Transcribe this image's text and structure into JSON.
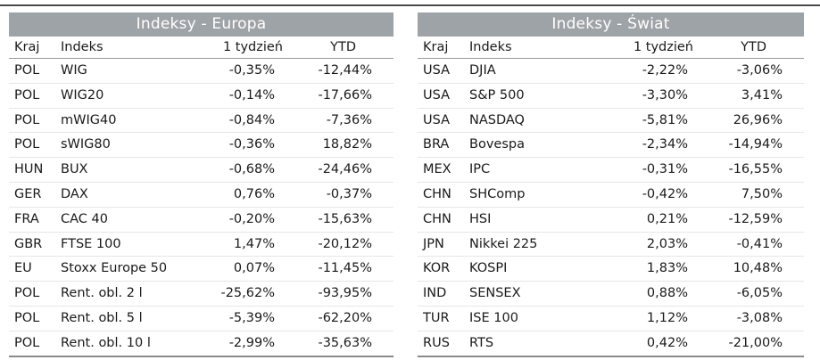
{
  "europe": {
    "title": "Indeksy - Europa",
    "headers": {
      "country": "Kraj",
      "index": "Indeks",
      "week": "1 tydzień",
      "ytd": "YTD"
    },
    "rows": [
      {
        "country": "POL",
        "index": "WIG",
        "week": "-0,35%",
        "ytd": "-12,44%"
      },
      {
        "country": "POL",
        "index": "WIG20",
        "week": "-0,14%",
        "ytd": "-17,66%"
      },
      {
        "country": "POL",
        "index": "mWIG40",
        "week": "-0,84%",
        "ytd": "-7,36%"
      },
      {
        "country": "POL",
        "index": "sWIG80",
        "week": "-0,36%",
        "ytd": "18,82%"
      },
      {
        "country": "HUN",
        "index": "BUX",
        "week": "-0,68%",
        "ytd": "-24,46%"
      },
      {
        "country": "GER",
        "index": "DAX",
        "week": "0,76%",
        "ytd": "-0,37%"
      },
      {
        "country": "FRA",
        "index": "CAC 40",
        "week": "-0,20%",
        "ytd": "-15,63%"
      },
      {
        "country": "GBR",
        "index": "FTSE 100",
        "week": "1,47%",
        "ytd": "-20,12%"
      },
      {
        "country": "EU",
        "index": "Stoxx Europe 50",
        "week": "0,07%",
        "ytd": "-11,45%"
      },
      {
        "country": "POL",
        "index": "Rent. obl. 2 l",
        "week": "-25,62%",
        "ytd": "-93,95%"
      },
      {
        "country": "POL",
        "index": "Rent. obl. 5 l",
        "week": "-5,39%",
        "ytd": "-62,20%"
      },
      {
        "country": "POL",
        "index": "Rent. obl. 10 l",
        "week": "-2,99%",
        "ytd": "-35,63%"
      }
    ]
  },
  "world": {
    "title": "Indeksy - Świat",
    "headers": {
      "country": "Kraj",
      "index": "Indeks",
      "week": "1 tydzień",
      "ytd": "YTD"
    },
    "rows": [
      {
        "country": "USA",
        "index": "DJIA",
        "week": "-2,22%",
        "ytd": "-3,06%"
      },
      {
        "country": "USA",
        "index": "S&P 500",
        "week": "-3,30%",
        "ytd": "3,41%"
      },
      {
        "country": "USA",
        "index": "NASDAQ",
        "week": "-5,81%",
        "ytd": "26,96%"
      },
      {
        "country": "BRA",
        "index": "Bovespa",
        "week": "-2,34%",
        "ytd": "-14,94%"
      },
      {
        "country": "MEX",
        "index": "IPC",
        "week": "-0,31%",
        "ytd": "-16,55%"
      },
      {
        "country": "CHN",
        "index": "SHComp",
        "week": "-0,42%",
        "ytd": "7,50%"
      },
      {
        "country": "CHN",
        "index": "HSI",
        "week": "0,21%",
        "ytd": "-12,59%"
      },
      {
        "country": "JPN",
        "index": "Nikkei 225",
        "week": "2,03%",
        "ytd": "-0,41%"
      },
      {
        "country": "KOR",
        "index": "KOSPI",
        "week": "1,83%",
        "ytd": "10,48%"
      },
      {
        "country": "IND",
        "index": "SENSEX",
        "week": "0,88%",
        "ytd": "-6,05%"
      },
      {
        "country": "TUR",
        "index": "ISE 100",
        "week": "1,12%",
        "ytd": "-3,08%"
      },
      {
        "country": "RUS",
        "index": "RTS",
        "week": "0,42%",
        "ytd": "-21,00%"
      }
    ]
  },
  "colors": {
    "title_band": "#9ea3a8",
    "title_text": "#ffffff",
    "body_text": "#1a1a1a",
    "top_rule": "#4a4a4a"
  }
}
